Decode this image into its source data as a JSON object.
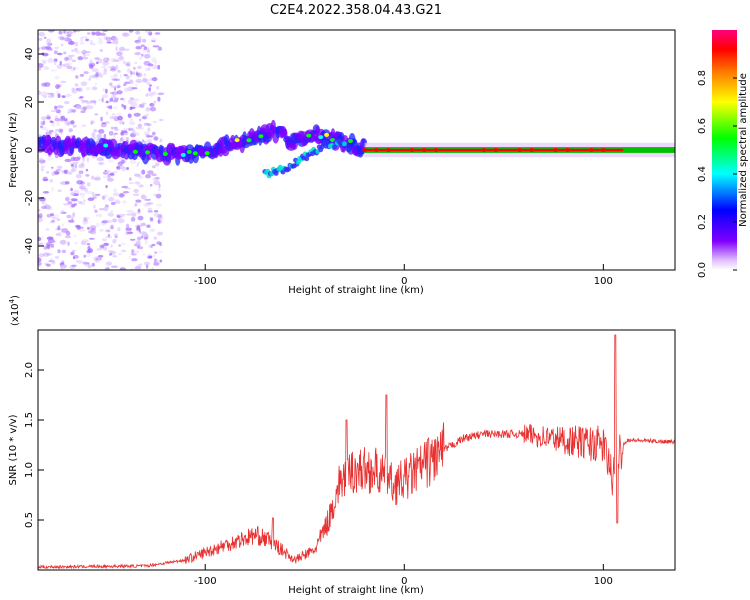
{
  "title": "C2E4.2022.358.04.43.G21",
  "chart_data": [
    {
      "type": "heatmap",
      "xlabel": "Height of straight line (km)",
      "ylabel": "Frequency (Hz)",
      "xlim": [
        -184,
        136
      ],
      "ylim": [
        -50,
        50
      ],
      "x_ticks": [
        -100,
        0,
        100
      ],
      "y_ticks": [
        -40,
        -20,
        0,
        20,
        40
      ],
      "colorbar": {
        "label": "Normalized spectral amplitude",
        "range": [
          0,
          1
        ],
        "ticks": [
          "0.0",
          "0.2",
          "0.4",
          "0.6",
          "0.8"
        ],
        "colormap": [
          "#ffffff",
          "#8000ff",
          "#0000ff",
          "#00ffff",
          "#00ff00",
          "#ffff00",
          "#ff8000",
          "#ff0000",
          "#ff0080"
        ]
      },
      "features": [
        {
          "name": "noise",
          "x_range": [
            -184,
            -122
          ],
          "freq_range": [
            -50,
            50
          ],
          "amplitude": 0.05
        },
        {
          "name": "main_trace",
          "points": [
            [
              -184,
              2
            ],
            [
              -150,
              1
            ],
            [
              -120,
              -2
            ],
            [
              -100,
              -1
            ],
            [
              -80,
              4
            ],
            [
              -65,
              8
            ],
            [
              -55,
              3
            ],
            [
              -45,
              7
            ],
            [
              -35,
              4
            ],
            [
              -20,
              1
            ],
            [
              0,
              1
            ],
            [
              50,
              0
            ],
            [
              100,
              0
            ],
            [
              136,
              0
            ]
          ]
        },
        {
          "name": "secondary_trace",
          "points": [
            [
              -70,
              -10
            ],
            [
              -60,
              -8
            ],
            [
              -50,
              -3
            ],
            [
              -40,
              2
            ],
            [
              -30,
              3
            ]
          ]
        },
        {
          "name": "steady_line",
          "x_range": [
            -20,
            136
          ],
          "freq": 0,
          "amplitude": 0.85
        }
      ]
    },
    {
      "type": "line",
      "xlabel": "Height of straight line (km)",
      "ylabel": "SNR (10 * v/v)",
      "y_multiplier": "(x10",
      "y_multiplier_exp": "4",
      "y_multiplier_close": ")",
      "xlim": [
        -184,
        136
      ],
      "ylim": [
        0,
        2.4
      ],
      "x_ticks": [
        -100,
        0,
        100
      ],
      "y_ticks": [
        "0.5",
        "1.0",
        "1.5",
        "2.0"
      ],
      "color": "#e83030",
      "envelope": [
        [
          -184,
          0.03
        ],
        [
          -130,
          0.04
        ],
        [
          -110,
          0.1
        ],
        [
          -90,
          0.25
        ],
        [
          -75,
          0.35
        ],
        [
          -68,
          0.3
        ],
        [
          -55,
          0.1
        ],
        [
          -45,
          0.2
        ],
        [
          -38,
          0.5
        ],
        [
          -32,
          0.9
        ],
        [
          -25,
          1.0
        ],
        [
          -15,
          1.0
        ],
        [
          -5,
          0.85
        ],
        [
          0,
          0.9
        ],
        [
          10,
          1.05
        ],
        [
          20,
          1.2
        ],
        [
          30,
          1.32
        ],
        [
          40,
          1.36
        ],
        [
          60,
          1.36
        ],
        [
          80,
          1.3
        ],
        [
          100,
          1.25
        ],
        [
          105,
          0.9
        ],
        [
          108,
          1.2
        ],
        [
          112,
          1.3
        ],
        [
          136,
          1.28
        ]
      ],
      "spikes": [
        [
          -66,
          0.52
        ],
        [
          -29,
          1.5
        ],
        [
          -9,
          1.75
        ],
        [
          106,
          2.35
        ],
        [
          107,
          0.47
        ]
      ]
    }
  ]
}
